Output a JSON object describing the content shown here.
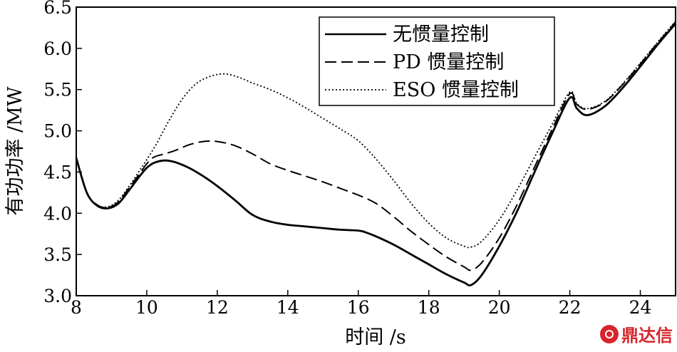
{
  "chart_data": {
    "type": "line",
    "xlabel": "时间 /s",
    "ylabel": "有功功率 /MW",
    "xlim": [
      8,
      25
    ],
    "ylim": [
      3.0,
      6.5
    ],
    "xticks": [
      "8",
      "10",
      "12",
      "14",
      "16",
      "18",
      "20",
      "22",
      "24"
    ],
    "yticks": [
      "3.0",
      "3.5",
      "4.0",
      "4.5",
      "5.0",
      "5.5",
      "6.0",
      "6.5"
    ],
    "grid": false,
    "legend_position": "top-right",
    "series": [
      {
        "name": "无惯量控制",
        "style": "solid",
        "x": [
          8.0,
          8.3,
          8.6,
          8.9,
          9.2,
          9.5,
          9.8,
          10.0,
          10.2,
          10.5,
          10.8,
          11.2,
          11.6,
          12.0,
          12.5,
          13.0,
          13.5,
          14.0,
          14.5,
          15.0,
          15.5,
          16.0,
          16.2,
          16.5,
          17.0,
          17.5,
          18.0,
          18.5,
          19.0,
          19.2,
          19.5,
          20.0,
          20.5,
          21.0,
          21.5,
          22.0,
          22.2,
          22.5,
          23.0,
          23.5,
          24.0,
          24.5,
          25.0
        ],
        "y": [
          4.67,
          4.25,
          4.09,
          4.06,
          4.12,
          4.28,
          4.45,
          4.55,
          4.61,
          4.64,
          4.62,
          4.55,
          4.45,
          4.33,
          4.16,
          3.98,
          3.9,
          3.86,
          3.84,
          3.82,
          3.8,
          3.79,
          3.77,
          3.72,
          3.62,
          3.5,
          3.38,
          3.26,
          3.16,
          3.13,
          3.25,
          3.6,
          4.02,
          4.5,
          4.97,
          5.4,
          5.27,
          5.19,
          5.3,
          5.52,
          5.78,
          6.05,
          6.3
        ]
      },
      {
        "name": "PD 惯量控制",
        "style": "dashed",
        "x": [
          8.0,
          8.3,
          8.6,
          8.9,
          9.2,
          9.5,
          9.8,
          10.0,
          10.2,
          10.5,
          10.8,
          11.2,
          11.6,
          12.0,
          12.5,
          13.0,
          13.5,
          14.0,
          14.5,
          15.0,
          15.5,
          16.0,
          16.5,
          17.0,
          17.5,
          18.0,
          18.5,
          19.0,
          19.2,
          19.5,
          20.0,
          20.5,
          21.0,
          21.5,
          22.0,
          22.2,
          22.5,
          23.0,
          23.5,
          24.0,
          24.5,
          25.0
        ],
        "y": [
          4.67,
          4.25,
          4.1,
          4.07,
          4.14,
          4.31,
          4.48,
          4.6,
          4.68,
          4.72,
          4.76,
          4.83,
          4.87,
          4.87,
          4.82,
          4.72,
          4.6,
          4.52,
          4.45,
          4.38,
          4.3,
          4.22,
          4.12,
          3.96,
          3.78,
          3.62,
          3.47,
          3.35,
          3.31,
          3.4,
          3.7,
          4.1,
          4.56,
          5.02,
          5.45,
          5.32,
          5.26,
          5.35,
          5.56,
          5.81,
          6.07,
          6.32
        ]
      },
      {
        "name": "ESO 惯量控制",
        "style": "dotted",
        "x": [
          8.0,
          8.3,
          8.6,
          8.9,
          9.2,
          9.5,
          9.8,
          10.0,
          10.3,
          10.6,
          11.0,
          11.4,
          11.8,
          12.2,
          12.6,
          13.0,
          13.5,
          14.0,
          14.5,
          15.0,
          15.5,
          16.0,
          16.5,
          17.0,
          17.5,
          18.0,
          18.5,
          19.0,
          19.2,
          19.5,
          20.0,
          20.5,
          21.0,
          21.5,
          22.0,
          22.2,
          22.5,
          23.0,
          23.5,
          24.0,
          24.5,
          25.0
        ],
        "y": [
          4.67,
          4.25,
          4.1,
          4.08,
          4.16,
          4.33,
          4.52,
          4.65,
          4.86,
          5.1,
          5.38,
          5.57,
          5.66,
          5.69,
          5.65,
          5.58,
          5.5,
          5.4,
          5.28,
          5.15,
          5.02,
          4.88,
          4.66,
          4.4,
          4.12,
          3.88,
          3.7,
          3.6,
          3.59,
          3.66,
          3.92,
          4.28,
          4.68,
          5.08,
          5.47,
          5.33,
          5.27,
          5.36,
          5.57,
          5.82,
          6.08,
          6.33
        ]
      }
    ]
  },
  "watermark": {
    "text": "鼎达信"
  }
}
